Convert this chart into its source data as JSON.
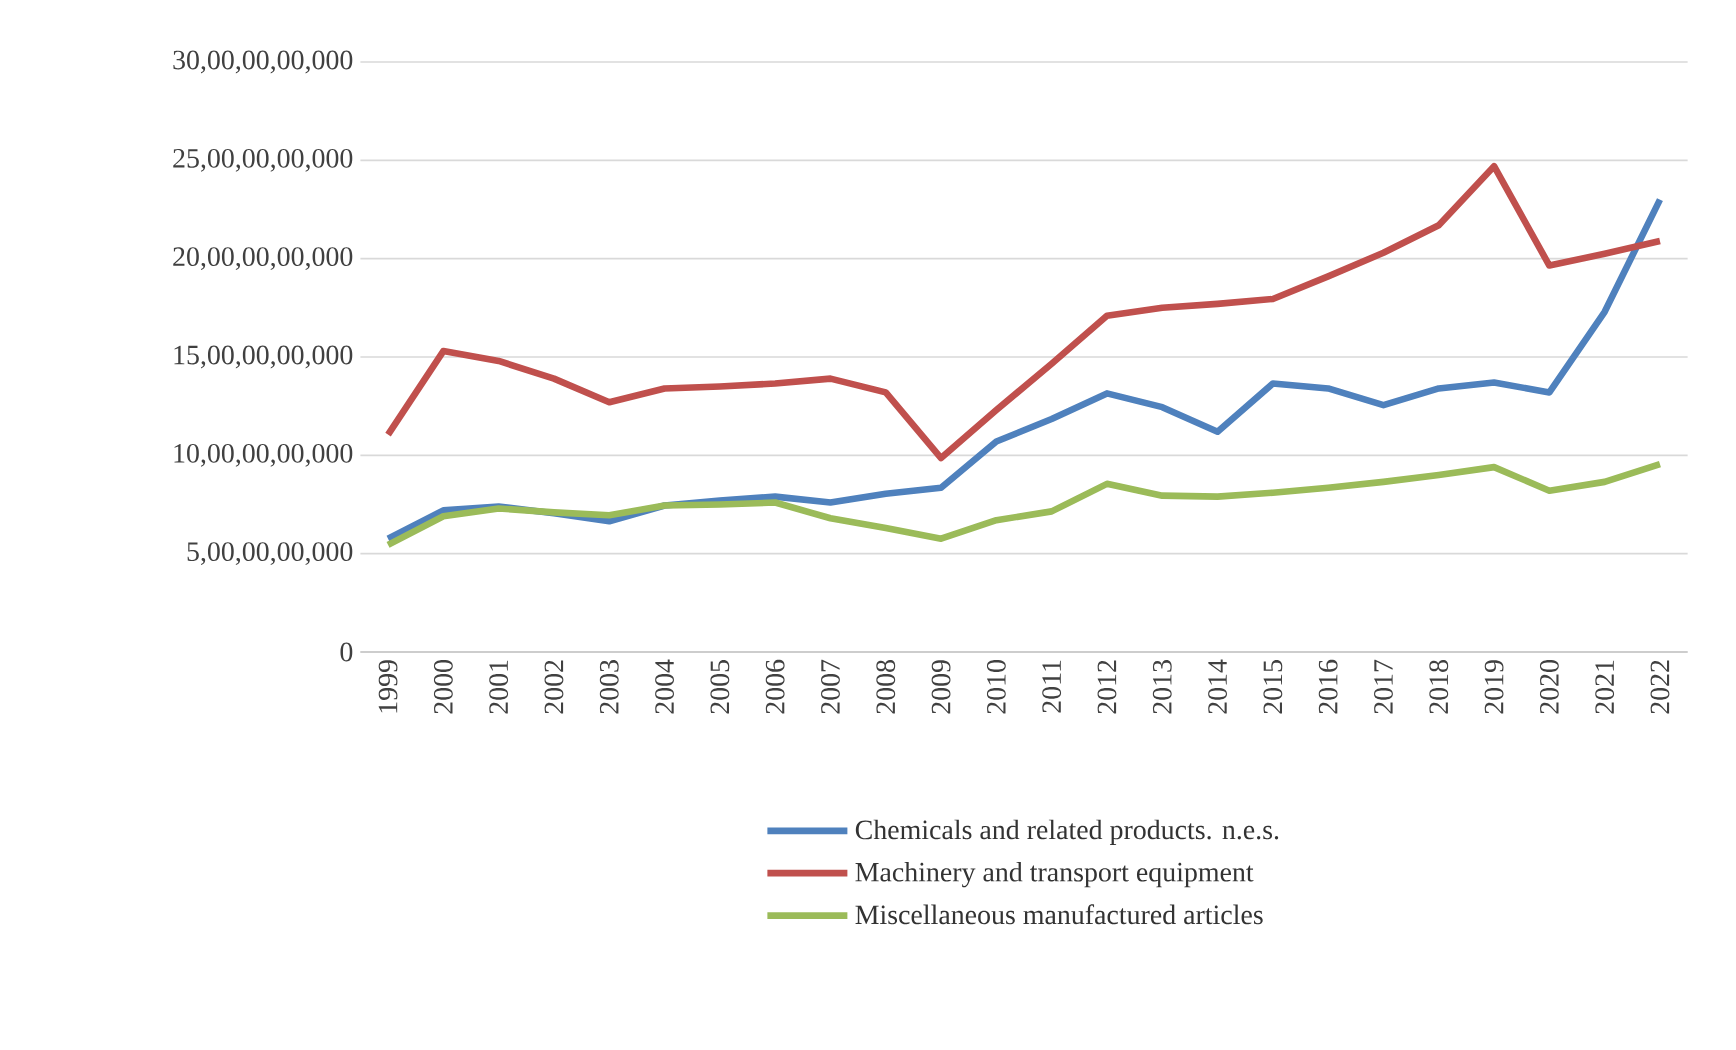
{
  "chart_data": {
    "type": "line",
    "categories": [
      "1999",
      "2000",
      "2001",
      "2002",
      "2003",
      "2004",
      "2005",
      "2006",
      "2007",
      "2008",
      "2009",
      "2010",
      "2011",
      "2012",
      "2013",
      "2014",
      "2015",
      "2016",
      "2017",
      "2018",
      "2019",
      "2020",
      "2021",
      "2022"
    ],
    "series": [
      {
        "name": "Chemicals and related products. n.e.s.",
        "color": "#4f81bd",
        "values": [
          5760000000.0,
          7200000000.0,
          7400000000.0,
          7050000000.0,
          6650000000.0,
          7450000000.0,
          7700000000.0,
          7900000000.0,
          7600000000.0,
          8050000000.0,
          8350000000.0,
          10700000000.0,
          11850000000.0,
          13150000000.0,
          12450000000.0,
          11200000000.0,
          13650000000.0,
          13400000000.0,
          12550000000.0,
          13400000000.0,
          13700000000.0,
          13200000000.0,
          17300000000.0,
          23000000000.0
        ]
      },
      {
        "name": "Machinery and transport equipment",
        "color": "#c0504d",
        "values": [
          11050000000.0,
          15300000000.0,
          14800000000.0,
          13900000000.0,
          12700000000.0,
          13400000000.0,
          13500000000.0,
          13650000000.0,
          13900000000.0,
          13200000000.0,
          9860000000.0,
          12300000000.0,
          14660000000.0,
          17100000000.0,
          17500000000.0,
          17700000000.0,
          17950000000.0,
          19100000000.0,
          20300000000.0,
          21700000000.0,
          24700000000.0,
          19650000000.0,
          20250000000.0,
          20900000000.0
        ]
      },
      {
        "name": "Miscellaneous manufactured articles",
        "color": "#9bbb59",
        "values": [
          5450000000.0,
          6900000000.0,
          7300000000.0,
          7100000000.0,
          6950000000.0,
          7450000000.0,
          7500000000.0,
          7600000000.0,
          6800000000.0,
          6300000000.0,
          5760000000.0,
          6700000000.0,
          7150000000.0,
          8550000000.0,
          7950000000.0,
          7900000000.0,
          8100000000.0,
          8350000000.0,
          8650000000.0,
          9000000000.0,
          9400000000.0,
          8200000000.0,
          8650000000.0,
          9550000000.0
        ]
      }
    ],
    "ylim": [
      0,
      30000000000
    ],
    "yticks": [
      0,
      {
        "value": 5000000000,
        "label": "5,00,00,00,000"
      },
      {
        "value": 10000000000,
        "label": "10,00,00,00,000"
      },
      {
        "value": 15000000000,
        "label": "15,00,00,00,000"
      },
      {
        "value": 20000000000,
        "label": "20,00,00,00,000"
      },
      {
        "value": 25000000000,
        "label": "25,00,00,00,000"
      },
      {
        "value": 30000000000,
        "label": "30,00,00,00,000"
      }
    ],
    "grid": "y",
    "legend": "bottom"
  }
}
